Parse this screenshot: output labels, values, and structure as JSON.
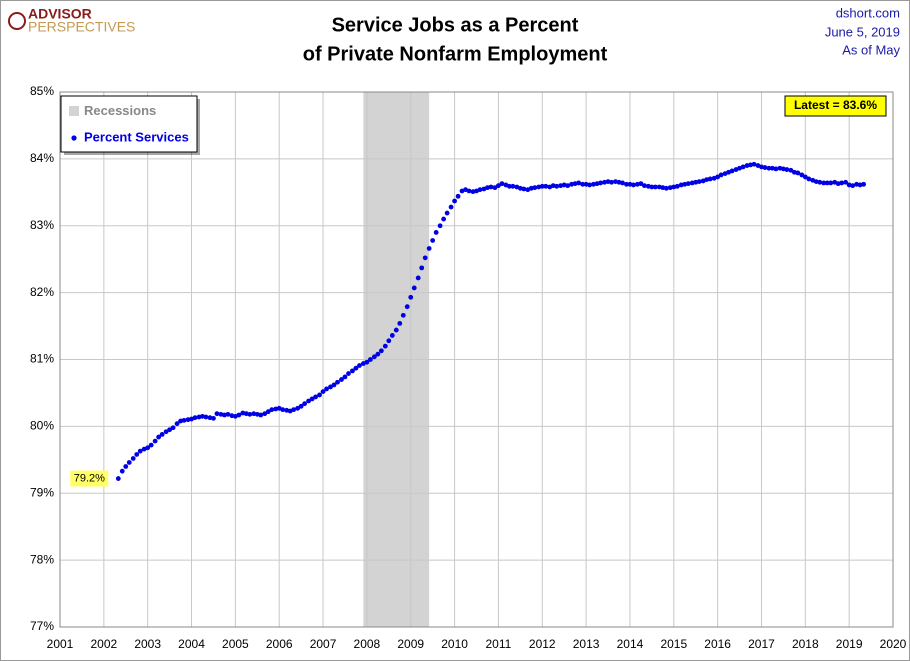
{
  "chart_data": {
    "type": "scatter",
    "title": [
      "Service Jobs as a Percent",
      "of Private Nonfarm Employment"
    ],
    "logo": [
      "ADVISOR",
      "PERSPECTIVES"
    ],
    "source": [
      "dshort.com",
      "June 5, 2019",
      "As of May"
    ],
    "annotations": [
      "79.2%",
      "Latest = 83.6%"
    ],
    "recessions": {
      "name": "Recessions",
      "color": "#d3d3d3",
      "spans": [
        [
          2007.92,
          2009.42
        ]
      ]
    },
    "xlim": [
      2001,
      2020
    ],
    "xticks": [
      2001,
      2002,
      2003,
      2004,
      2005,
      2006,
      2007,
      2008,
      2009,
      2010,
      2011,
      2012,
      2013,
      2014,
      2015,
      2016,
      2017,
      2018,
      2019,
      2020
    ],
    "ylim": [
      77,
      85
    ],
    "yticks": [
      {
        "value": 77,
        "label": "77%"
      },
      {
        "value": 78,
        "label": "78%"
      },
      {
        "value": 79,
        "label": "79%"
      },
      {
        "value": 80,
        "label": "80%"
      },
      {
        "value": 81,
        "label": "81%"
      },
      {
        "value": 82,
        "label": "82%"
      },
      {
        "value": 83,
        "label": "83%"
      },
      {
        "value": 84,
        "label": "84%"
      },
      {
        "value": 85,
        "label": "85%"
      }
    ],
    "grid": true,
    "legend": "top-left",
    "x": [
      2002.33,
      2002.42,
      2002.5,
      2002.58,
      2002.67,
      2002.75,
      2002.83,
      2002.92,
      2003,
      2003.08,
      2003.17,
      2003.25,
      2003.33,
      2003.42,
      2003.5,
      2003.58,
      2003.67,
      2003.75,
      2003.83,
      2003.92,
      2004,
      2004.08,
      2004.17,
      2004.25,
      2004.33,
      2004.42,
      2004.5,
      2004.58,
      2004.67,
      2004.75,
      2004.83,
      2004.92,
      2005,
      2005.08,
      2005.17,
      2005.25,
      2005.33,
      2005.42,
      2005.5,
      2005.58,
      2005.67,
      2005.75,
      2005.83,
      2005.92,
      2006,
      2006.08,
      2006.17,
      2006.25,
      2006.33,
      2006.42,
      2006.5,
      2006.58,
      2006.67,
      2006.75,
      2006.83,
      2006.92,
      2007,
      2007.08,
      2007.17,
      2007.25,
      2007.33,
      2007.42,
      2007.5,
      2007.58,
      2007.67,
      2007.75,
      2007.83,
      2007.92,
      2008,
      2008.08,
      2008.17,
      2008.25,
      2008.33,
      2008.42,
      2008.5,
      2008.58,
      2008.67,
      2008.75,
      2008.83,
      2008.92,
      2009,
      2009.08,
      2009.17,
      2009.25,
      2009.33,
      2009.42,
      2009.5,
      2009.58,
      2009.67,
      2009.75,
      2009.83,
      2009.92,
      2010,
      2010.08,
      2010.17,
      2010.25,
      2010.33,
      2010.42,
      2010.5,
      2010.58,
      2010.67,
      2010.75,
      2010.83,
      2010.92,
      2011,
      2011.08,
      2011.17,
      2011.25,
      2011.33,
      2011.42,
      2011.5,
      2011.58,
      2011.67,
      2011.75,
      2011.83,
      2011.92,
      2012,
      2012.08,
      2012.17,
      2012.25,
      2012.33,
      2012.42,
      2012.5,
      2012.58,
      2012.67,
      2012.75,
      2012.83,
      2012.92,
      2013,
      2013.08,
      2013.17,
      2013.25,
      2013.33,
      2013.42,
      2013.5,
      2013.58,
      2013.67,
      2013.75,
      2013.83,
      2013.92,
      2014,
      2014.08,
      2014.17,
      2014.25,
      2014.33,
      2014.42,
      2014.5,
      2014.58,
      2014.67,
      2014.75,
      2014.83,
      2014.92,
      2015,
      2015.08,
      2015.17,
      2015.25,
      2015.33,
      2015.42,
      2015.5,
      2015.58,
      2015.67,
      2015.75,
      2015.83,
      2015.92,
      2016,
      2016.08,
      2016.17,
      2016.25,
      2016.33,
      2016.42,
      2016.5,
      2016.58,
      2016.67,
      2016.75,
      2016.83,
      2016.92,
      2017,
      2017.08,
      2017.17,
      2017.25,
      2017.33,
      2017.42,
      2017.5,
      2017.58,
      2017.67,
      2017.75,
      2017.83,
      2017.92,
      2018,
      2018.08,
      2018.17,
      2018.25,
      2018.33,
      2018.42,
      2018.5,
      2018.58,
      2018.67,
      2018.75,
      2018.83,
      2018.92,
      2019,
      2019.08,
      2019.17,
      2019.25,
      2019.33
    ],
    "series": [
      {
        "name": "Percent Services",
        "color": "#0000e6",
        "values": [
          79.22,
          79.33,
          79.4,
          79.46,
          79.52,
          79.58,
          79.63,
          79.66,
          79.68,
          79.72,
          79.78,
          79.84,
          79.88,
          79.92,
          79.95,
          79.98,
          80.04,
          80.08,
          80.09,
          80.1,
          80.11,
          80.13,
          80.14,
          80.15,
          80.14,
          80.13,
          80.12,
          80.19,
          80.18,
          80.17,
          80.18,
          80.16,
          80.15,
          80.17,
          80.2,
          80.19,
          80.18,
          80.19,
          80.18,
          80.17,
          80.19,
          80.22,
          80.25,
          80.26,
          80.27,
          80.25,
          80.24,
          80.23,
          80.25,
          80.27,
          80.3,
          80.34,
          80.38,
          80.41,
          80.44,
          80.47,
          80.52,
          80.56,
          80.59,
          80.62,
          80.66,
          80.7,
          80.74,
          80.79,
          80.83,
          80.87,
          80.91,
          80.94,
          80.96,
          81.0,
          81.04,
          81.08,
          81.13,
          81.2,
          81.28,
          81.36,
          81.44,
          81.54,
          81.66,
          81.79,
          81.93,
          82.07,
          82.22,
          82.37,
          82.52,
          82.66,
          82.78,
          82.9,
          83.0,
          83.1,
          83.19,
          83.28,
          83.37,
          83.44,
          83.52,
          83.54,
          83.52,
          83.51,
          83.52,
          83.54,
          83.55,
          83.57,
          83.58,
          83.57,
          83.6,
          83.63,
          83.61,
          83.59,
          83.59,
          83.58,
          83.56,
          83.55,
          83.54,
          83.56,
          83.57,
          83.58,
          83.59,
          83.59,
          83.58,
          83.6,
          83.59,
          83.6,
          83.61,
          83.6,
          83.62,
          83.63,
          83.64,
          83.62,
          83.62,
          83.61,
          83.62,
          83.63,
          83.64,
          83.65,
          83.66,
          83.65,
          83.66,
          83.65,
          83.64,
          83.62,
          83.62,
          83.61,
          83.62,
          83.63,
          83.6,
          83.59,
          83.58,
          83.58,
          83.58,
          83.57,
          83.56,
          83.57,
          83.58,
          83.59,
          83.61,
          83.62,
          83.63,
          83.64,
          83.65,
          83.66,
          83.67,
          83.69,
          83.7,
          83.71,
          83.73,
          83.76,
          83.78,
          83.8,
          83.82,
          83.84,
          83.86,
          83.88,
          83.9,
          83.91,
          83.92,
          83.9,
          83.88,
          83.87,
          83.86,
          83.86,
          83.85,
          83.86,
          83.85,
          83.84,
          83.83,
          83.8,
          83.79,
          83.76,
          83.73,
          83.7,
          83.68,
          83.66,
          83.65,
          83.64,
          83.64,
          83.64,
          83.65,
          83.63,
          83.64,
          83.65,
          83.61,
          83.6,
          83.62,
          83.61,
          83.62
        ]
      }
    ]
  }
}
